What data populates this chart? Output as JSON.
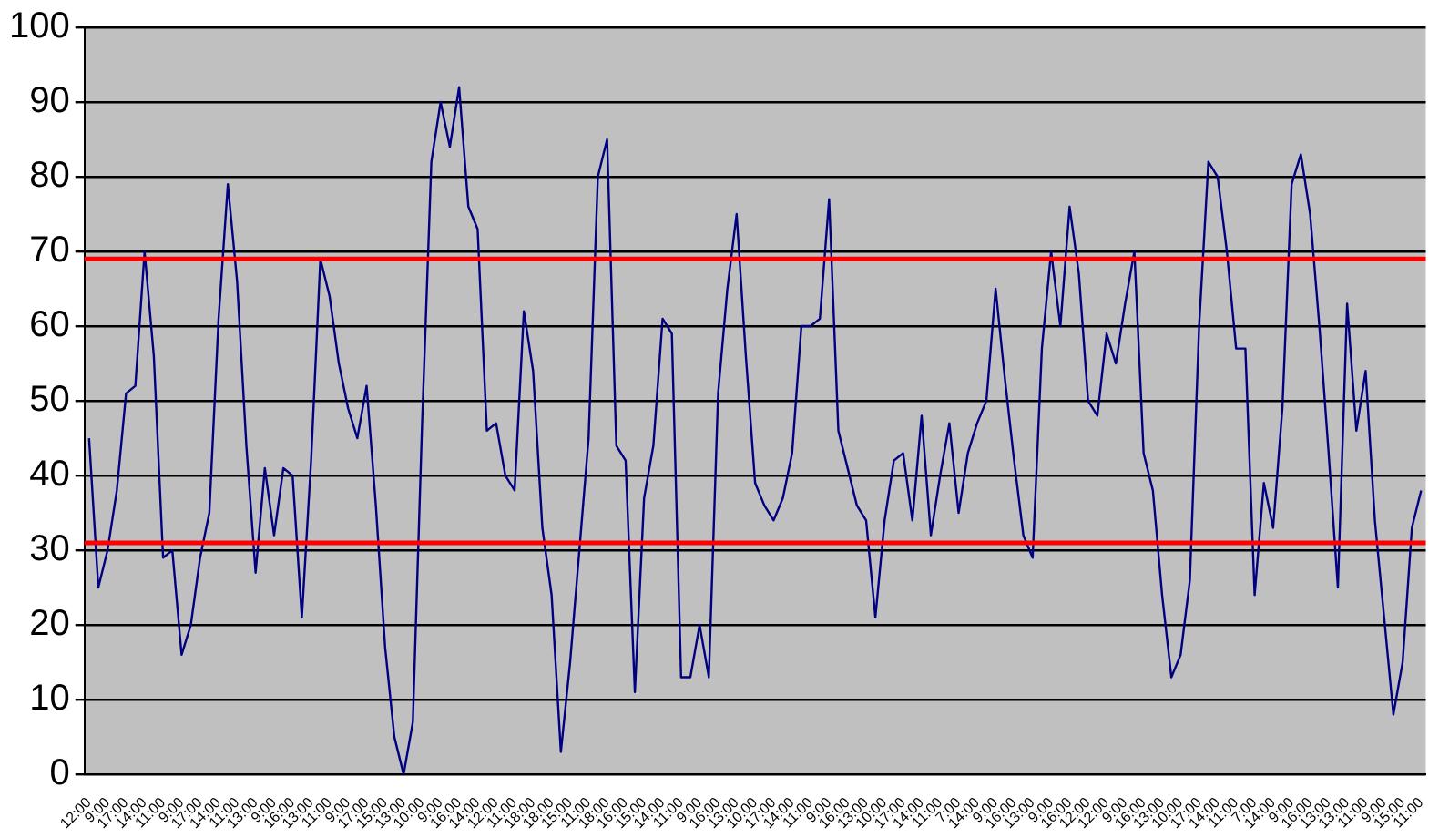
{
  "chart_data": {
    "type": "line",
    "categories": [
      "12:00",
      null,
      "9:00",
      null,
      "17:00",
      null,
      "14:00",
      null,
      "11:00",
      null,
      "9:00",
      null,
      "17:00",
      null,
      "14:00",
      null,
      "11:00",
      null,
      "13:00",
      null,
      "9:00",
      null,
      "16:00",
      null,
      "13:00",
      null,
      "11:00",
      null,
      "9:00",
      null,
      "17:00",
      null,
      "15:00",
      null,
      "13:00",
      null,
      "10:00",
      null,
      "9:00",
      null,
      "16:00",
      null,
      "14:00",
      null,
      "12:00",
      null,
      "11:00",
      null,
      "18:00",
      null,
      "18:00",
      null,
      "15:00",
      null,
      "11:00",
      null,
      "18:00",
      null,
      "16:00",
      null,
      "15:00",
      null,
      "14:00",
      null,
      "11:00",
      null,
      "9:00",
      null,
      "16:00",
      null,
      "13:00",
      null,
      "10:00",
      null,
      "17:00",
      null,
      "14:00",
      null,
      "11:00",
      null,
      "9:00",
      null,
      "16:00",
      null,
      "13:00",
      null,
      "10:00",
      null,
      "17:00",
      null,
      "14:00",
      null,
      "11:00",
      null,
      "7:00",
      null,
      "14:00",
      null,
      "9:00",
      null,
      "16:00",
      null,
      "13:00",
      null,
      "9:00",
      null,
      "16:00",
      null,
      "12:00",
      null,
      "12:00",
      null,
      "9:00",
      null,
      "16:00",
      null,
      "13:00",
      null,
      "10:00",
      null,
      "17:00",
      null,
      "14:00",
      null,
      "11:00",
      null,
      "7:00",
      null,
      "14:00",
      null,
      "9:00",
      null,
      "16:00",
      null,
      "13:00",
      null,
      "13:00",
      null,
      "11:00",
      null,
      "9:00",
      null,
      "15:00",
      null,
      "11:00"
    ],
    "series": [
      {
        "color": "#000080",
        "values": [
          45,
          25,
          30,
          38,
          51,
          52,
          70,
          56,
          29,
          30,
          16,
          20,
          29,
          35,
          61,
          79,
          66,
          44,
          27,
          41,
          32,
          41,
          40,
          21,
          42,
          69,
          64,
          55,
          49,
          45,
          52,
          36,
          17,
          5,
          0,
          7,
          47,
          82,
          90,
          84,
          92,
          76,
          73,
          46,
          47,
          40,
          38,
          62,
          54,
          33,
          24,
          3,
          15,
          30,
          45,
          80,
          85,
          44,
          42,
          11,
          37,
          44,
          61,
          59,
          13,
          13,
          20,
          13,
          51,
          65,
          75,
          56,
          39,
          36,
          34,
          37,
          43,
          60,
          60,
          61,
          77,
          46,
          41,
          36,
          34,
          21,
          34,
          42,
          43,
          34,
          48,
          32,
          40,
          47,
          35,
          43,
          47,
          50,
          65,
          53,
          42,
          32,
          29,
          57,
          70,
          60,
          76,
          67,
          50,
          48,
          59,
          55,
          63,
          70,
          43,
          38,
          24,
          13,
          16,
          26,
          60,
          82,
          80,
          70,
          57,
          57,
          24,
          39,
          33,
          49,
          79,
          83,
          75,
          60,
          43,
          25,
          63,
          46,
          54,
          34,
          21,
          8,
          15,
          33,
          38
        ]
      }
    ],
    "ylim": [
      0,
      100
    ],
    "yticks": [
      0,
      10,
      20,
      30,
      40,
      50,
      60,
      70,
      80,
      90,
      100
    ],
    "ref_lines": [
      {
        "axis": "y",
        "value": 69,
        "color": "#ff0000"
      },
      {
        "axis": "y",
        "value": 31,
        "color": "#ff0000"
      }
    ],
    "grid": "y",
    "legend": false,
    "marker": "none",
    "line_style": "solid"
  }
}
